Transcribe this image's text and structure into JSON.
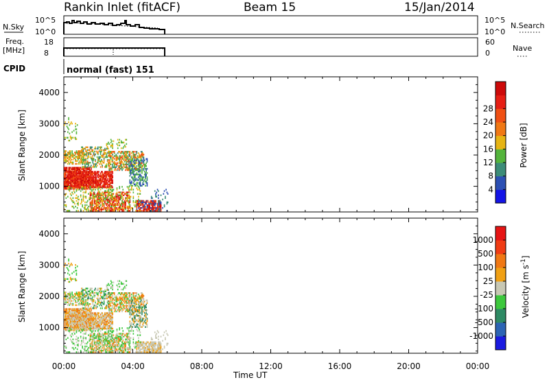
{
  "header": {
    "station": "Rankin Inlet (fitACF)",
    "beam": "Beam 15",
    "date": "15/Jan/2014"
  },
  "panels": {
    "nsky": {
      "label": "N.Sky",
      "ticks": [
        "10^5",
        "10^0"
      ]
    },
    "nsearch": {
      "label": "N.Search",
      "ticks": [
        "10^5",
        "10^0"
      ]
    },
    "freq": {
      "label_line1": "Freq.",
      "label_line2": "[MHz]",
      "ticks": [
        "18",
        "8"
      ]
    },
    "nave": {
      "label": "Nave",
      "ticks": [
        "60",
        "0"
      ]
    },
    "cpid": {
      "label": "CPID",
      "value": "normal (fast) 151"
    }
  },
  "chart_data": [
    {
      "type": "heatmap",
      "title": "",
      "xlabel": "Time UT",
      "ylabel": "Slant Range [km]",
      "xlim": [
        0,
        24
      ],
      "ylim": [
        180,
        4500
      ],
      "x_tick_labels": [
        "00:00",
        "04:00",
        "08:00",
        "12:00",
        "16:00",
        "20:00",
        "00:00"
      ],
      "y_tick_labels": [
        "1000",
        "2000",
        "3000",
        "4000"
      ],
      "data_extent_hours": [
        0,
        6
      ],
      "colorbar": {
        "label": "Power [dB]",
        "levels": [
          "4",
          "8",
          "12",
          "16",
          "20",
          "24",
          "28"
        ],
        "colors": [
          "#1414e6",
          "#2c50b4",
          "#3c8c78",
          "#54b43c",
          "#e6b414",
          "#f07814",
          "#f05014",
          "#e61e14",
          "#cd0a0a"
        ]
      }
    },
    {
      "type": "heatmap",
      "title": "",
      "xlabel": "Time UT",
      "ylabel": "Slant Range [km]",
      "xlim": [
        0,
        24
      ],
      "ylim": [
        180,
        4500
      ],
      "x_tick_labels": [
        "00:00",
        "04:00",
        "08:00",
        "12:00",
        "16:00",
        "20:00",
        "00:00"
      ],
      "y_tick_labels": [
        "1000",
        "2000",
        "3000",
        "4000"
      ],
      "data_extent_hours": [
        0,
        6
      ],
      "colorbar": {
        "label": "Velocity [m s^-1]",
        "levels": [
          "1000",
          "500",
          "100",
          "25",
          "-25",
          "-100",
          "-500",
          "-1000"
        ],
        "colors": [
          "#1a1ae0",
          "#2c64b4",
          "#2e8a64",
          "#3cc83c",
          "#c8c8b4",
          "#f0a014",
          "#f07814",
          "#f03c14",
          "#e61414"
        ]
      }
    }
  ]
}
